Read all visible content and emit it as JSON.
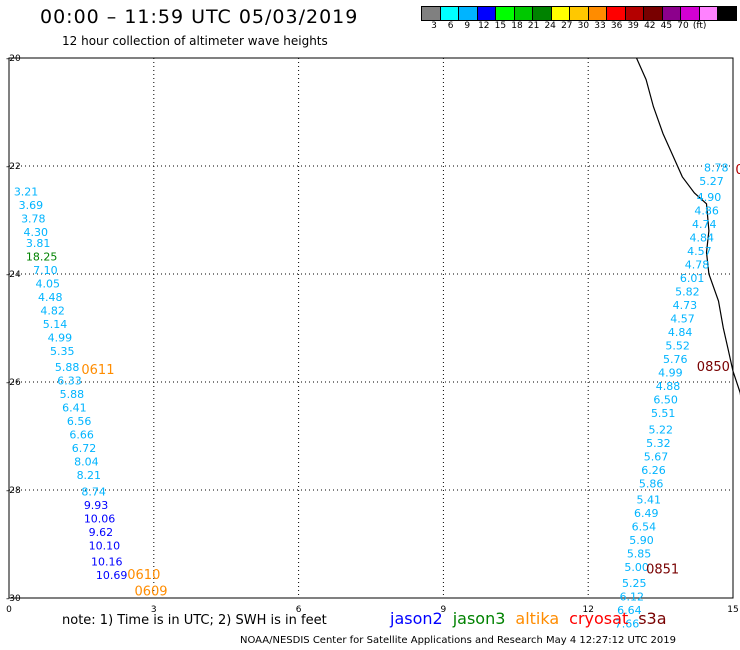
{
  "header": {
    "title": "00:00 – 11:59 UTC 05/03/2019",
    "subtitle": "12 hour collection of altimeter wave heights"
  },
  "legend": {
    "colors": [
      "#808080",
      "#00ffff",
      "#00b4ff",
      "#0000ff",
      "#00ff00",
      "#00c800",
      "#008200",
      "#ffff00",
      "#ffc800",
      "#ff8c00",
      "#ff0000",
      "#b40000",
      "#780000",
      "#8c008c",
      "#d200d2",
      "#ff82ff",
      "#000000"
    ],
    "labels": [
      "3",
      "6",
      "9",
      "12",
      "15",
      "18",
      "21",
      "24",
      "27",
      "30",
      "33",
      "36",
      "39",
      "42",
      "45",
      "70",
      "(ft)"
    ]
  },
  "map": {
    "lon_range": [
      0,
      15
    ],
    "lat_range": [
      -30,
      -20
    ],
    "x_ticks": [
      0,
      3,
      6,
      9,
      12,
      15
    ],
    "y_ticks": [
      -20,
      -22,
      -24,
      -26,
      -28,
      -30
    ],
    "grid": "dotted",
    "coastline": [
      [
        13.0,
        -20.0
      ],
      [
        13.2,
        -20.4
      ],
      [
        13.35,
        -20.9
      ],
      [
        13.55,
        -21.4
      ],
      [
        13.75,
        -21.8
      ],
      [
        13.95,
        -22.2
      ],
      [
        14.2,
        -22.5
      ],
      [
        14.45,
        -22.7
      ],
      [
        14.5,
        -23.2
      ],
      [
        14.45,
        -23.6
      ],
      [
        14.5,
        -24.0
      ],
      [
        14.7,
        -24.5
      ],
      [
        14.8,
        -25.0
      ],
      [
        14.9,
        -25.4
      ],
      [
        15.0,
        -25.8
      ],
      [
        15.15,
        -26.2
      ],
      [
        15.2,
        -26.5
      ]
    ],
    "time_labels": [
      {
        "text": "0611",
        "lon": 1.5,
        "lat": -25.85,
        "color": "#ff8c00"
      },
      {
        "text": "0610",
        "lon": 2.45,
        "lat": -29.65,
        "color": "#ff8c00"
      },
      {
        "text": "0609",
        "lon": 2.6,
        "lat": -29.95,
        "color": "#ff8c00"
      },
      {
        "text": "0850",
        "lon": 14.25,
        "lat": -25.8,
        "color": "#780000"
      },
      {
        "text": "0851",
        "lon": 13.2,
        "lat": -29.55,
        "color": "#780000"
      },
      {
        "text": "0",
        "lon": 15.05,
        "lat": -22.15,
        "color": "#b40000"
      }
    ],
    "tracks": [
      {
        "name": "altika-track-west",
        "points": [
          {
            "v": "3.21",
            "lon": 0.1,
            "lat": -22.55,
            "color": "#00b4ff"
          },
          {
            "v": "3.69",
            "lon": 0.2,
            "lat": -22.8,
            "color": "#00b4ff"
          },
          {
            "v": "3.78",
            "lon": 0.25,
            "lat": -23.05,
            "color": "#00b4ff"
          },
          {
            "v": "4.30",
            "lon": 0.3,
            "lat": -23.3,
            "color": "#00b4ff"
          },
          {
            "v": "3.81",
            "lon": 0.35,
            "lat": -23.5,
            "color": "#00b4ff"
          },
          {
            "v": "18.25",
            "lon": 0.35,
            "lat": -23.75,
            "color": "#008200"
          },
          {
            "v": "7.10",
            "lon": 0.5,
            "lat": -24.0,
            "color": "#00b4ff"
          },
          {
            "v": "4.05",
            "lon": 0.55,
            "lat": -24.25,
            "color": "#00b4ff"
          },
          {
            "v": "4.48",
            "lon": 0.6,
            "lat": -24.5,
            "color": "#00b4ff"
          },
          {
            "v": "4.82",
            "lon": 0.65,
            "lat": -24.75,
            "color": "#00b4ff"
          },
          {
            "v": "5.14",
            "lon": 0.7,
            "lat": -25.0,
            "color": "#00b4ff"
          },
          {
            "v": "4.99",
            "lon": 0.8,
            "lat": -25.25,
            "color": "#00b4ff"
          },
          {
            "v": "5.35",
            "lon": 0.85,
            "lat": -25.5,
            "color": "#00b4ff"
          },
          {
            "v": "5.88",
            "lon": 0.95,
            "lat": -25.8,
            "color": "#00b4ff"
          },
          {
            "v": "6.33",
            "lon": 1.0,
            "lat": -26.05,
            "color": "#00b4ff"
          },
          {
            "v": "5.88",
            "lon": 1.05,
            "lat": -26.3,
            "color": "#00b4ff"
          },
          {
            "v": "6.41",
            "lon": 1.1,
            "lat": -26.55,
            "color": "#00b4ff"
          },
          {
            "v": "6.56",
            "lon": 1.2,
            "lat": -26.8,
            "color": "#00b4ff"
          },
          {
            "v": "6.66",
            "lon": 1.25,
            "lat": -27.05,
            "color": "#00b4ff"
          },
          {
            "v": "6.72",
            "lon": 1.3,
            "lat": -27.3,
            "color": "#00b4ff"
          },
          {
            "v": "8.04",
            "lon": 1.35,
            "lat": -27.55,
            "color": "#00b4ff"
          },
          {
            "v": "8.21",
            "lon": 1.4,
            "lat": -27.8,
            "color": "#00b4ff"
          },
          {
            "v": "8.74",
            "lon": 1.5,
            "lat": -28.1,
            "color": "#00b4ff"
          },
          {
            "v": "9.93",
            "lon": 1.55,
            "lat": -28.35,
            "color": "#0000ff"
          },
          {
            "v": "10.06",
            "lon": 1.55,
            "lat": -28.6,
            "color": "#0000ff"
          },
          {
            "v": "9.62",
            "lon": 1.65,
            "lat": -28.85,
            "color": "#0000ff"
          },
          {
            "v": "10.10",
            "lon": 1.65,
            "lat": -29.1,
            "color": "#0000ff"
          },
          {
            "v": "10.16",
            "lon": 1.7,
            "lat": -29.4,
            "color": "#0000ff"
          },
          {
            "v": "10.69",
            "lon": 1.8,
            "lat": -29.65,
            "color": "#0000ff"
          }
        ]
      },
      {
        "name": "cryosat-track-east",
        "points": [
          {
            "v": "8.78",
            "lon": 14.4,
            "lat": -22.1,
            "color": "#00b4ff"
          },
          {
            "v": "5.27",
            "lon": 14.3,
            "lat": -22.35,
            "color": "#00b4ff"
          },
          {
            "v": "4.90",
            "lon": 14.25,
            "lat": -22.65,
            "color": "#00b4ff"
          },
          {
            "v": "4.86",
            "lon": 14.2,
            "lat": -22.9,
            "color": "#00b4ff"
          },
          {
            "v": "4.74",
            "lon": 14.15,
            "lat": -23.15,
            "color": "#00b4ff"
          },
          {
            "v": "4.84",
            "lon": 14.1,
            "lat": -23.4,
            "color": "#00b4ff"
          },
          {
            "v": "4.57",
            "lon": 14.05,
            "lat": -23.65,
            "color": "#00b4ff"
          },
          {
            "v": "4.78",
            "lon": 14.0,
            "lat": -23.9,
            "color": "#00b4ff"
          },
          {
            "v": "6.01",
            "lon": 13.9,
            "lat": -24.15,
            "color": "#00b4ff"
          },
          {
            "v": "5.82",
            "lon": 13.8,
            "lat": -24.4,
            "color": "#00b4ff"
          },
          {
            "v": "4.73",
            "lon": 13.75,
            "lat": -24.65,
            "color": "#00b4ff"
          },
          {
            "v": "4.57",
            "lon": 13.7,
            "lat": -24.9,
            "color": "#00b4ff"
          },
          {
            "v": "4.84",
            "lon": 13.65,
            "lat": -25.15,
            "color": "#00b4ff"
          },
          {
            "v": "5.52",
            "lon": 13.6,
            "lat": -25.4,
            "color": "#00b4ff"
          },
          {
            "v": "5.76",
            "lon": 13.55,
            "lat": -25.65,
            "color": "#00b4ff"
          },
          {
            "v": "4.99",
            "lon": 13.45,
            "lat": -25.9,
            "color": "#00b4ff"
          },
          {
            "v": "4.88",
            "lon": 13.4,
            "lat": -26.15,
            "color": "#00b4ff"
          },
          {
            "v": "6.50",
            "lon": 13.35,
            "lat": -26.4,
            "color": "#00b4ff"
          },
          {
            "v": "5.51",
            "lon": 13.3,
            "lat": -26.65,
            "color": "#00b4ff"
          },
          {
            "v": "5.22",
            "lon": 13.25,
            "lat": -26.95,
            "color": "#00b4ff"
          },
          {
            "v": "5.32",
            "lon": 13.2,
            "lat": -27.2,
            "color": "#00b4ff"
          },
          {
            "v": "5.67",
            "lon": 13.15,
            "lat": -27.45,
            "color": "#00b4ff"
          },
          {
            "v": "6.26",
            "lon": 13.1,
            "lat": -27.7,
            "color": "#00b4ff"
          },
          {
            "v": "5.86",
            "lon": 13.05,
            "lat": -27.95,
            "color": "#00b4ff"
          },
          {
            "v": "5.41",
            "lon": 13.0,
            "lat": -28.25,
            "color": "#00b4ff"
          },
          {
            "v": "6.49",
            "lon": 12.95,
            "lat": -28.5,
            "color": "#00b4ff"
          },
          {
            "v": "6.54",
            "lon": 12.9,
            "lat": -28.75,
            "color": "#00b4ff"
          },
          {
            "v": "5.90",
            "lon": 12.85,
            "lat": -29.0,
            "color": "#00b4ff"
          },
          {
            "v": "5.85",
            "lon": 12.8,
            "lat": -29.25,
            "color": "#00b4ff"
          },
          {
            "v": "5.00",
            "lon": 12.75,
            "lat": -29.5,
            "color": "#00b4ff"
          },
          {
            "v": "5.25",
            "lon": 12.7,
            "lat": -29.8,
            "color": "#00b4ff"
          },
          {
            "v": "6.12",
            "lon": 12.65,
            "lat": -30.05,
            "color": "#00b4ff"
          },
          {
            "v": "6.64",
            "lon": 12.6,
            "lat": -30.3,
            "color": "#00b4ff"
          },
          {
            "v": "7.66",
            "lon": 12.55,
            "lat": -30.55,
            "color": "#00b4ff"
          }
        ]
      }
    ]
  },
  "footer": {
    "note": "note: 1) Time is in UTC; 2) SWH is in feet",
    "satellites": [
      {
        "name": "jason2",
        "color": "#0000ff"
      },
      {
        "name": "jason3",
        "color": "#008200"
      },
      {
        "name": "altika",
        "color": "#ff8c00"
      },
      {
        "name": "cryosat",
        "color": "#ff0000"
      },
      {
        "name": "s3a",
        "color": "#780000"
      }
    ],
    "credit": "NOAA/NESDIS Center for Satellite Applications and Research   May  4 12:27:12 UTC 2019"
  }
}
